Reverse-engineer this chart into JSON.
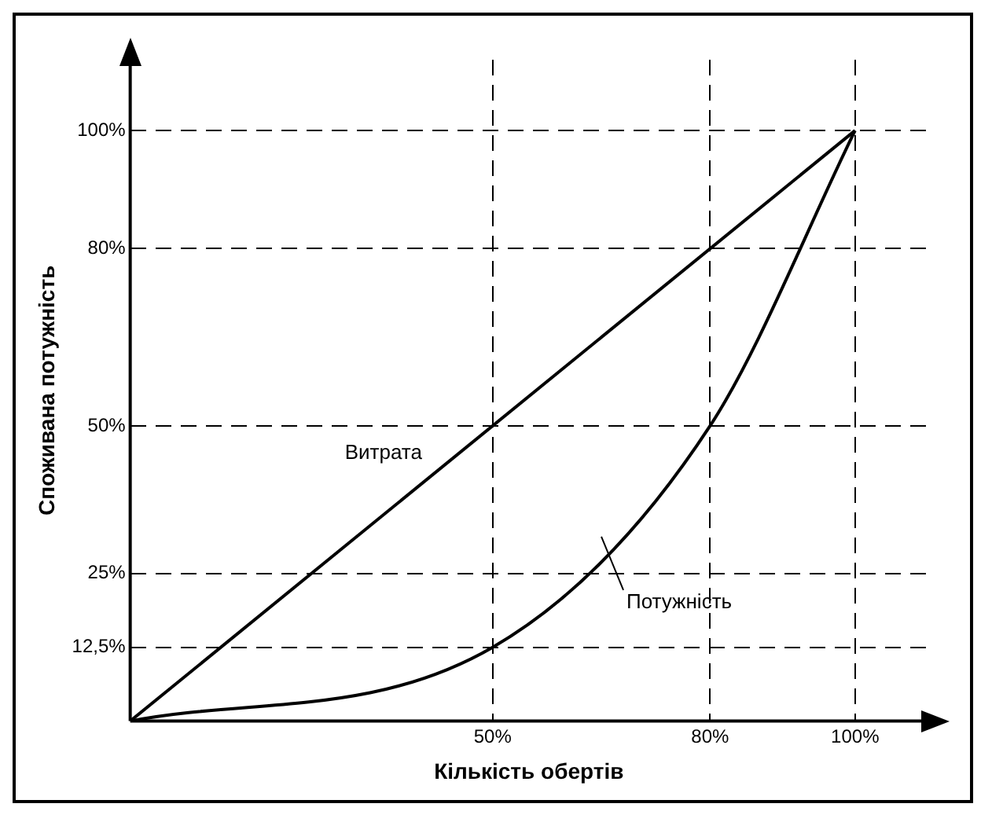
{
  "chart_data": {
    "type": "line",
    "xlabel": "Кількість обертів",
    "ylabel": "Споживана потужність",
    "xlim": [
      0,
      110
    ],
    "ylim": [
      0,
      112
    ],
    "xticks": [
      {
        "value": 50,
        "label": "50%"
      },
      {
        "value": 80,
        "label": "80%"
      },
      {
        "value": 100,
        "label": "100%"
      }
    ],
    "yticks": [
      {
        "value": 12.5,
        "label": "12,5%"
      },
      {
        "value": 25,
        "label": "25%"
      },
      {
        "value": 50,
        "label": "50%"
      },
      {
        "value": 80,
        "label": "80%"
      },
      {
        "value": 100,
        "label": "100%"
      }
    ],
    "grid": true,
    "legend": false,
    "marker": "none",
    "series": [
      {
        "name": "Витрата",
        "color": "#000000",
        "x": [
          0,
          100
        ],
        "values": [
          0,
          100
        ]
      },
      {
        "name": "Потужність",
        "color": "#000000",
        "x": [
          0,
          50,
          80,
          100
        ],
        "values": [
          0,
          12.5,
          50,
          100
        ]
      }
    ]
  }
}
